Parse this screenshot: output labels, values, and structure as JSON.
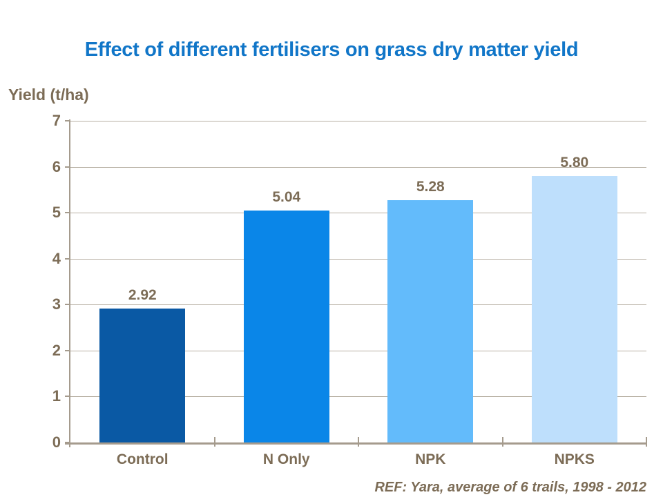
{
  "title": {
    "text": "Effect of different fertilisers on grass dry matter yield",
    "color": "#1176c8"
  },
  "y_axis_title": "Yield (t/ha)",
  "footer": {
    "ref_text": "REF: Yara, average of 6 trails, 1998 - 2012"
  },
  "colors": {
    "text_brown": "#7c6c56",
    "axis_line": "#a59b8d",
    "gridline": "#b6aea1",
    "background": "#ffffff"
  },
  "chart_data": {
    "type": "bar",
    "title": "Effect of different fertilisers on grass dry matter yield",
    "xlabel": "",
    "ylabel": "Yield (t/ha)",
    "categories": [
      "Control",
      "N Only",
      "NPK",
      "NPKS"
    ],
    "values": [
      2.92,
      5.04,
      5.28,
      5.8
    ],
    "data_labels": [
      "2.92",
      "5.04",
      "5.28",
      "5.80"
    ],
    "bar_colors": [
      "#0a59a4",
      "#0a86e8",
      "#63bbfb",
      "#bedffc"
    ],
    "ylim": [
      0,
      7
    ],
    "yticks": [
      0,
      1,
      2,
      3,
      4,
      5,
      6,
      7
    ],
    "grid": "horizontal",
    "legend_position": "none",
    "annotation": "REF: Yara, average of 6 trails, 1998 - 2012"
  }
}
